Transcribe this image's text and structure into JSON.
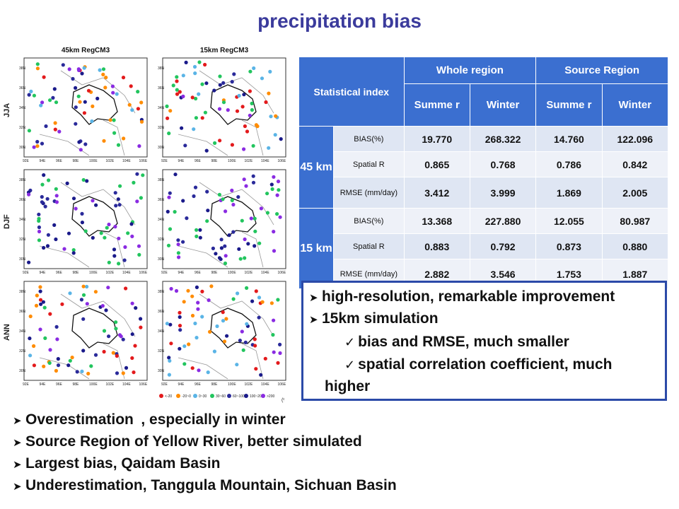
{
  "title": "precipitation bias",
  "maps": {
    "col_titles": [
      "45km RegCM3",
      "15km RegCM3"
    ],
    "row_labels": [
      "JJA",
      "DJF",
      "ANN"
    ],
    "lat_labels": [
      "38N",
      "36N",
      "34N",
      "32N",
      "30N"
    ],
    "lon_labels": [
      "92E",
      "94E",
      "96E",
      "98E",
      "100E",
      "102E",
      "104E",
      "106E"
    ],
    "legend": [
      "<-20",
      "-20~0",
      "0~30",
      "30~60",
      "60~100",
      "100~200",
      ">200",
      "(%)"
    ],
    "legend_colors": [
      "#e31a1c",
      "#ff8c00",
      "#5ab4e6",
      "#22c55e",
      "#2a2a9a",
      "#1a1a8a",
      "#8a2be2"
    ]
  },
  "table": {
    "header": {
      "stat_index": "Statistical index",
      "whole_region": "Whole region",
      "source_region": "Source Region",
      "summer": "Summe r",
      "winter": "Winter",
      "summer2": "Summe r",
      "winter2": "Winter"
    },
    "groups": [
      {
        "label": "45 km",
        "rows": [
          {
            "index": "BIAS(%)",
            "values": [
              "19.770",
              "268.322",
              "14.760",
              "122.096"
            ]
          },
          {
            "index": "Spatial R",
            "values": [
              "0.865",
              "0.768",
              "0.786",
              "0.842"
            ]
          },
          {
            "index": "RMSE (mm/day)",
            "values": [
              "3.412",
              "3.999",
              "1.869",
              "2.005"
            ]
          }
        ]
      },
      {
        "label": "15 km",
        "rows": [
          {
            "index": "BIAS(%)",
            "values": [
              "13.368",
              "227.880",
              "12.055",
              "80.987"
            ]
          },
          {
            "index": "Spatial R",
            "values": [
              "0.883",
              "0.792",
              "0.873",
              "0.880"
            ]
          },
          {
            "index": "RMSE (mm/day)",
            "values": [
              "2.882",
              "3.546",
              "1.753",
              "1.887"
            ]
          }
        ]
      }
    ]
  },
  "box_points": [
    "high-resolution, remarkable improvement",
    "15km simulation",
    "bias and RMSE, much smaller",
    "spatial correlation coefficient, much",
    "higher"
  ],
  "bottom_points": [
    "Overestimation , especially in winter",
    "Source Region of Yellow River, better simulated",
    "Largest bias, Qaidam Basin",
    "Underestimation, Tanggula Mountain, Sichuan Basin"
  ]
}
